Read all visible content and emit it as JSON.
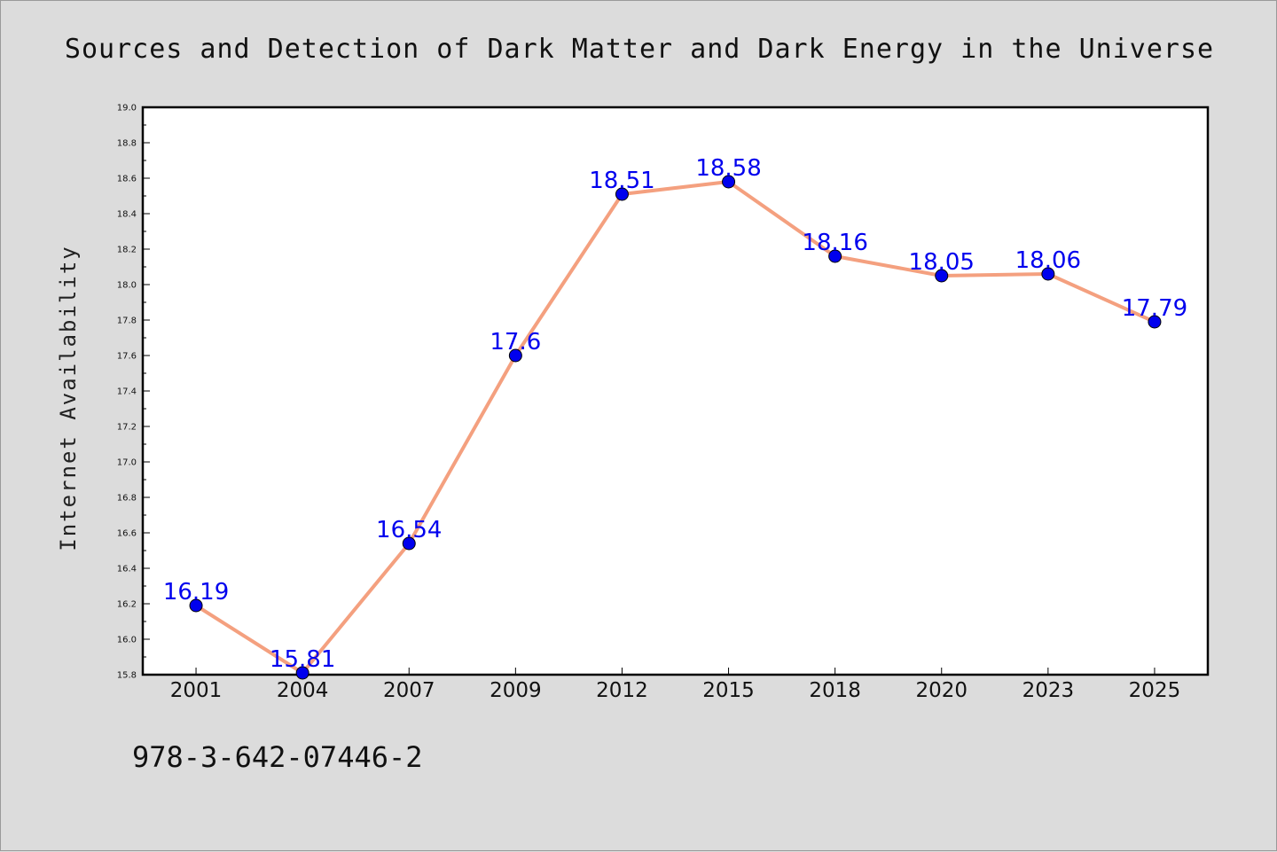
{
  "chart_data": {
    "type": "line",
    "title": "Sources and Detection of Dark Matter and Dark Energy in the Universe",
    "xlabel": "",
    "ylabel": "Internet Availability",
    "categories": [
      "2001",
      "2004",
      "2007",
      "2009",
      "2012",
      "2015",
      "2018",
      "2020",
      "2023",
      "2025"
    ],
    "series": [
      {
        "values": [
          16.19,
          15.81,
          16.54,
          17.6,
          18.51,
          18.58,
          18.16,
          18.05,
          18.06,
          17.79
        ],
        "data_labels": [
          "16.19",
          "15.81",
          "16.54",
          "17.6",
          "18.51",
          "18.58",
          "18.16",
          "18.05",
          "18.06",
          "17.79"
        ],
        "line_color": "#f4a07f",
        "marker_color": "#0000ee"
      }
    ],
    "ylim": [
      15.8,
      19.0
    ],
    "yticks": [
      "15.8",
      "16.0",
      "16.2",
      "16.4",
      "16.6",
      "16.8",
      "17.0",
      "17.2",
      "17.4",
      "17.6",
      "17.8",
      "18.0",
      "18.2",
      "18.4",
      "18.6",
      "18.8",
      "19.0"
    ],
    "grid": false,
    "legend": "none"
  },
  "footer": {
    "isbn": "978-3-642-07446-2"
  },
  "colors": {
    "background": "#dcdcdc",
    "plot_background": "#ffffff",
    "line": "#f4a07f",
    "marker": "#0000ee",
    "data_label": "#0000ee"
  }
}
